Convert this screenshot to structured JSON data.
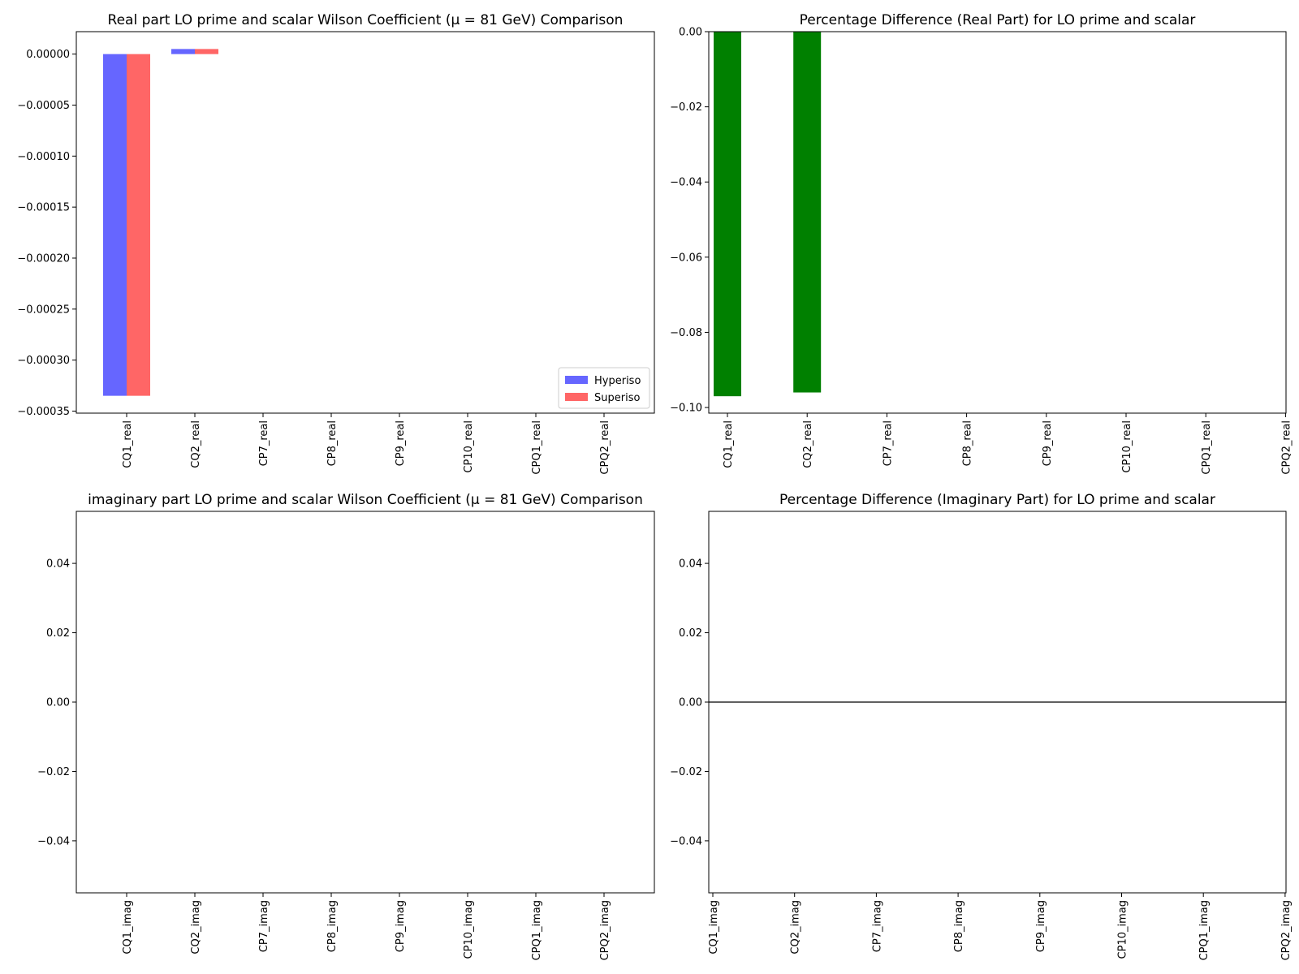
{
  "chart_data": [
    {
      "type": "bar",
      "title": "Real part LO prime and scalar Wilson Coefficient (μ = 81 GeV) Comparison",
      "xlabel": "",
      "ylabel": "",
      "categories": [
        "CQ1_real",
        "CQ2_real",
        "CP7_real",
        "CP8_real",
        "CP9_real",
        "CP10_real",
        "CPQ1_real",
        "CPQ2_real"
      ],
      "series": [
        {
          "name": "Hyperiso",
          "color": "#6666ff",
          "values": [
            -0.000335,
            5e-06,
            0,
            0,
            0,
            0,
            0,
            0
          ]
        },
        {
          "name": "Superiso",
          "color": "#ff6666",
          "values": [
            -0.000335,
            5e-06,
            0,
            0,
            0,
            0,
            0,
            0
          ]
        }
      ],
      "ylim": [
        -0.000352,
        2.2e-05
      ],
      "yticks": [
        0,
        -5e-05,
        -0.0001,
        -0.00015,
        -0.0002,
        -0.00025,
        -0.0003,
        -0.00035
      ],
      "ytick_labels": [
        "0.00000",
        "−0.00005",
        "−0.00010",
        "−0.00015",
        "−0.00020",
        "−0.00025",
        "−0.00030",
        "−0.00035"
      ],
      "legend_position": "lower-right",
      "grid": false
    },
    {
      "type": "bar",
      "title": "Percentage Difference (Real Part) for LO prime and scalar",
      "xlabel": "",
      "ylabel": "",
      "categories": [
        "CQ1_real",
        "CQ2_real",
        "CP7_real",
        "CP8_real",
        "CP9_real",
        "CP10_real",
        "CPQ1_real",
        "CPQ2_real"
      ],
      "series": [
        {
          "color": "#008000",
          "values": [
            -0.097,
            -0.096,
            0,
            0,
            0,
            0,
            0,
            0
          ]
        }
      ],
      "ylim": [
        -0.1015,
        0.0
      ],
      "yticks": [
        0,
        -0.02,
        -0.04,
        -0.06,
        -0.08,
        -0.1
      ],
      "ytick_labels": [
        "0.00",
        "−0.02",
        "−0.04",
        "−0.06",
        "−0.08",
        "−0.10"
      ],
      "grid": false
    },
    {
      "type": "bar",
      "title": "imaginary part LO prime and scalar Wilson Coefficient (μ = 81 GeV) Comparison",
      "xlabel": "",
      "ylabel": "",
      "categories": [
        "CQ1_imag",
        "CQ2_imag",
        "CP7_imag",
        "CP8_imag",
        "CP9_imag",
        "CP10_imag",
        "CPQ1_imag",
        "CPQ2_imag"
      ],
      "series": [
        {
          "color": "#6666ff",
          "values": [
            0,
            0,
            0,
            0,
            0,
            0,
            0,
            0
          ]
        },
        {
          "color": "#ff6666",
          "values": [
            0,
            0,
            0,
            0,
            0,
            0,
            0,
            0
          ]
        }
      ],
      "ylim": [
        -0.055,
        0.055
      ],
      "yticks": [
        0.04,
        0.02,
        0,
        -0.02,
        -0.04
      ],
      "ytick_labels": [
        "0.04",
        "0.02",
        "0.00",
        "−0.02",
        "−0.04"
      ],
      "grid": false
    },
    {
      "type": "line",
      "title": "Percentage Difference (Imaginary Part) for LO prime and scalar",
      "xlabel": "",
      "ylabel": "",
      "categories": [
        "CQ1_imag",
        "CQ2_imag",
        "CP7_imag",
        "CP8_imag",
        "CP9_imag",
        "CP10_imag",
        "CPQ1_imag",
        "CPQ2_imag"
      ],
      "series": [
        {
          "color": "#000000",
          "values": [
            0,
            0,
            0,
            0,
            0,
            0,
            0,
            0
          ]
        }
      ],
      "ylim": [
        -0.055,
        0.055
      ],
      "yticks": [
        0.04,
        0.02,
        0,
        -0.02,
        -0.04
      ],
      "ytick_labels": [
        "0.04",
        "0.02",
        "0.00",
        "−0.02",
        "−0.04"
      ],
      "grid": false
    }
  ]
}
